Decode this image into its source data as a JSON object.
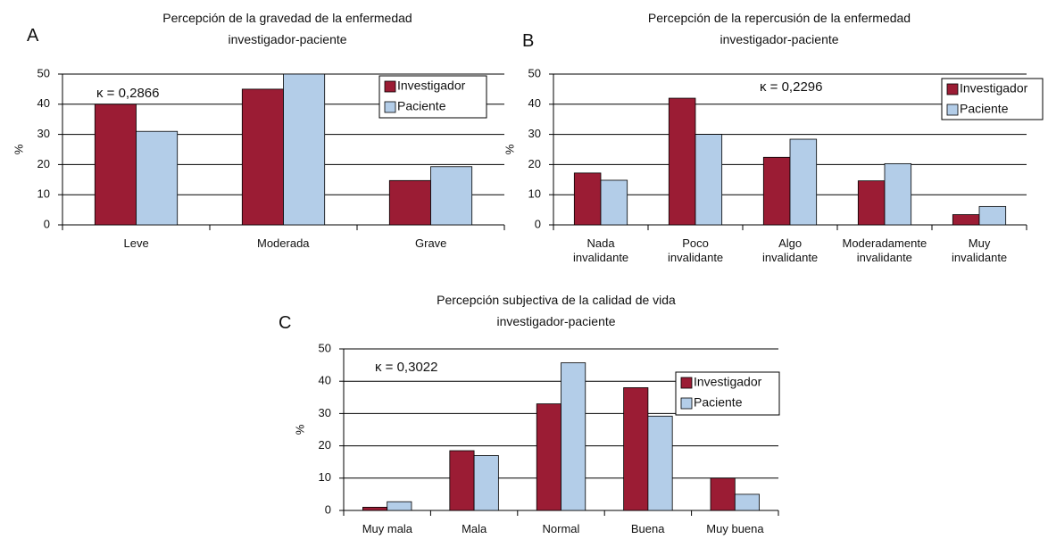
{
  "chart_data": [
    {
      "type": "bar",
      "panel_label": "A",
      "title": [
        "Percepción de la gravedad de la enfermedad",
        "investigador-paciente"
      ],
      "y_label": "%",
      "annotation": "κ = 0,2866",
      "categories": [
        "Leve",
        "Moderada",
        "Grave"
      ],
      "series": [
        {
          "name": "Investigador",
          "color": "#9b1c34",
          "values": [
            40,
            45,
            14.7
          ]
        },
        {
          "name": "Paciente",
          "color": "#b3cde8",
          "values": [
            31,
            50,
            19.3
          ]
        }
      ],
      "ylim": [
        0,
        50
      ],
      "yticks": [
        0,
        10,
        20,
        30,
        40,
        50
      ],
      "grid": true,
      "legend": "top-right"
    },
    {
      "type": "bar",
      "panel_label": "B",
      "title": [
        "Percepción de la repercusión de la enfermedad",
        "investigador-paciente"
      ],
      "y_label": "%",
      "annotation": "κ = 0,2296",
      "categories": [
        "Nada invalidante",
        "Poco invalidante",
        "Algo invalidante",
        "Moderadamente invalidante",
        "Muy invalidante"
      ],
      "series": [
        {
          "name": "Investigador",
          "color": "#9b1c34",
          "values": [
            17.2,
            42,
            22.4,
            14.6,
            3.4
          ]
        },
        {
          "name": "Paciente",
          "color": "#b3cde8",
          "values": [
            14.8,
            30,
            28.4,
            20.3,
            6.1
          ]
        }
      ],
      "ylim": [
        0,
        50
      ],
      "yticks": [
        0,
        10,
        20,
        30,
        40,
        50
      ],
      "grid": true,
      "legend": "top-right"
    },
    {
      "type": "bar",
      "panel_label": "C",
      "title": [
        "Percepción subjectiva de la calidad de vida",
        "investigador-paciente"
      ],
      "y_label": "%",
      "annotation": "κ = 0,3022",
      "categories": [
        "Muy mala",
        "Mala",
        "Normal",
        "Buena",
        "Muy buena"
      ],
      "series": [
        {
          "name": "Investigador",
          "color": "#9b1c34",
          "values": [
            1,
            18.5,
            33,
            38,
            10
          ]
        },
        {
          "name": "Paciente",
          "color": "#b3cde8",
          "values": [
            2.7,
            17,
            45.7,
            29.2,
            5
          ]
        }
      ],
      "ylim": [
        0,
        50
      ],
      "yticks": [
        0,
        10,
        20,
        30,
        40,
        50
      ],
      "grid": true,
      "legend": "top-right"
    }
  ]
}
